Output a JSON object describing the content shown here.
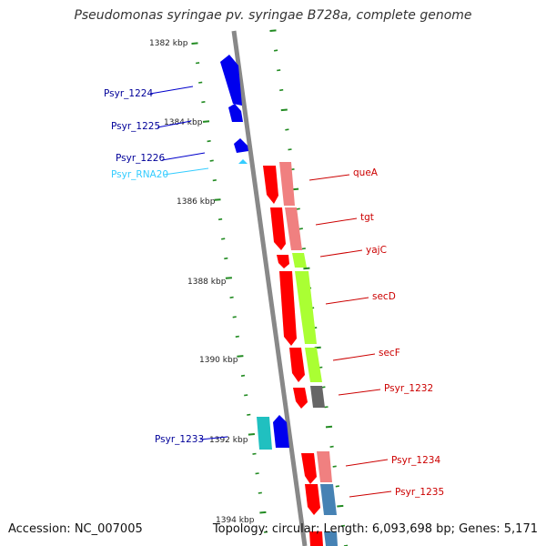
{
  "title": "Pseudomonas syringae pv. syringae B728a, complete genome",
  "footer": {
    "accession": "Accession: NC_007005",
    "summary": "Topology: circular; Length: 6,093,698 bp; Genes: 5,171"
  },
  "colors": {
    "backbone": "#888888",
    "tick_green": "#228b22",
    "reverse_blue": "#0000ee",
    "reverse_label": "#000099",
    "rna_cyan": "#33ccff",
    "forward_red": "#ff0000",
    "forward_label": "#cc0000"
  },
  "ticks": [
    {
      "label": "1382 kbp"
    },
    {
      "label": "1384 kbp"
    },
    {
      "label": "1386 kbp"
    },
    {
      "label": "1388 kbp"
    },
    {
      "label": "1390 kbp"
    },
    {
      "label": "1392 kbp"
    },
    {
      "label": "1394 kbp"
    }
  ],
  "genes": {
    "reverse": [
      "Psyr_1224",
      "Psyr_1225",
      "Psyr_1226",
      "Psyr_RNA20",
      "Psyr_1233"
    ],
    "forward": [
      "queA",
      "tgt",
      "yajC",
      "secD",
      "secF",
      "Psyr_1232",
      "Psyr_1234",
      "Psyr_1235"
    ]
  },
  "cog_colors": [
    "#f08080",
    "#f08080",
    "#aaff33",
    "#aaff33",
    "#aaff33",
    "#666666",
    "#f08080",
    "#4682b4"
  ]
}
